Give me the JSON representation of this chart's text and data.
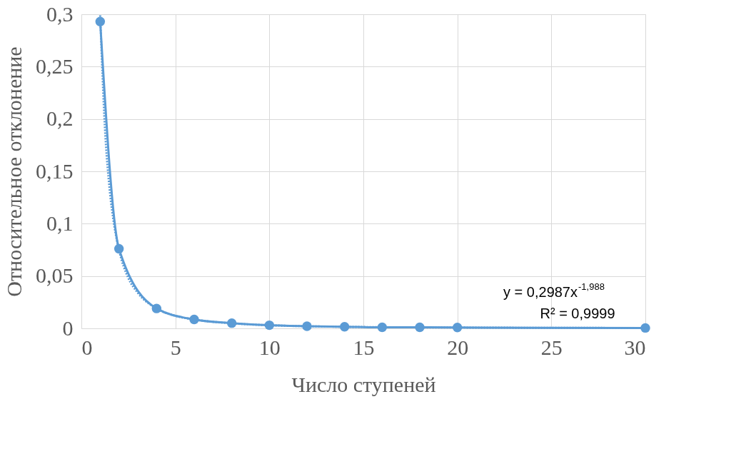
{
  "chart_data": {
    "type": "line",
    "xlabel": "Число ступеней",
    "ylabel": "Относительное отклонение",
    "xlim": [
      0,
      30
    ],
    "xticks": [
      0,
      5,
      10,
      15,
      20,
      25,
      30
    ],
    "ylim": [
      0,
      0.3
    ],
    "yticks": [
      0,
      {
        "value": 0.05,
        "label": "0,05"
      },
      {
        "value": 0.1,
        "label": "0,1"
      },
      {
        "value": 0.15,
        "label": "0,15"
      },
      {
        "value": 0.2,
        "label": "0,2"
      },
      {
        "value": 0.25,
        "label": "0,25"
      },
      {
        "value": 0.3,
        "label": "0,3"
      }
    ],
    "grid": true,
    "series": [
      {
        "marker": "circle",
        "line_style": "solid",
        "color": "#5b9bd5",
        "x": [
          1,
          2,
          4,
          6,
          8,
          10,
          12,
          14,
          16,
          18,
          20,
          30
        ],
        "values": [
          0.293,
          0.076,
          0.019,
          0.0085,
          0.005,
          0.003,
          0.002,
          0.0015,
          0.001,
          0.001,
          0.0008,
          0.0004
        ]
      },
      {
        "marker": "none",
        "line_style": "dotted",
        "color": "#5b9bd5",
        "x": [
          1,
          1.25,
          1.5,
          1.75,
          2,
          2.5,
          3,
          4,
          5,
          6,
          8,
          10,
          15,
          20,
          25,
          30
        ],
        "values": [
          0.299,
          0.192,
          0.133,
          0.098,
          0.075,
          0.048,
          0.034,
          0.019,
          0.012,
          0.0085,
          0.0048,
          0.003,
          0.0013,
          0.0008,
          0.0005,
          0.0004
        ]
      }
    ],
    "annotations": [
      "y = 0,2987x$^{-1,988}$",
      "R² = 0,9999"
    ]
  }
}
